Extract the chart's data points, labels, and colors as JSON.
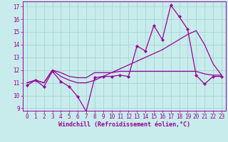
{
  "xlabel": "Windchill (Refroidissement éolien,°C)",
  "background_color": "#c8ecec",
  "grid_color": "#aad4d4",
  "line_color": "#990099",
  "xlim": [
    -0.5,
    23.5
  ],
  "ylim": [
    8.8,
    17.4
  ],
  "xticks": [
    0,
    1,
    2,
    3,
    4,
    5,
    6,
    7,
    8,
    9,
    10,
    11,
    12,
    13,
    14,
    15,
    16,
    17,
    18,
    19,
    20,
    21,
    22,
    23
  ],
  "yticks": [
    9,
    10,
    11,
    12,
    13,
    14,
    15,
    16,
    17
  ],
  "series1_x": [
    0,
    1,
    2,
    3,
    4,
    5,
    6,
    7,
    8,
    9,
    10,
    11,
    12,
    13,
    14,
    15,
    16,
    17,
    18,
    19,
    20,
    21,
    22,
    23
  ],
  "series1_y": [
    10.8,
    11.2,
    10.7,
    11.9,
    11.1,
    10.7,
    9.9,
    8.75,
    11.4,
    11.5,
    11.5,
    11.6,
    11.5,
    13.9,
    13.5,
    15.5,
    14.4,
    17.1,
    16.2,
    15.2,
    11.6,
    10.9,
    11.5,
    11.5
  ],
  "series2_x": [
    0,
    1,
    2,
    3,
    4,
    5,
    6,
    7,
    8,
    9,
    10,
    11,
    12,
    13,
    14,
    15,
    16,
    17,
    18,
    19,
    20,
    21,
    22,
    23
  ],
  "series2_y": [
    11.0,
    11.2,
    11.0,
    12.0,
    11.8,
    11.5,
    11.4,
    11.4,
    11.8,
    11.8,
    11.8,
    11.9,
    11.9,
    11.9,
    11.9,
    11.9,
    11.9,
    11.9,
    11.9,
    11.9,
    11.9,
    11.7,
    11.6,
    11.6
  ],
  "series3_x": [
    0,
    1,
    2,
    3,
    4,
    5,
    6,
    7,
    8,
    9,
    10,
    11,
    12,
    13,
    14,
    15,
    16,
    17,
    18,
    19,
    20,
    21,
    22,
    23
  ],
  "series3_y": [
    11.0,
    11.2,
    11.0,
    12.0,
    11.5,
    11.2,
    11.0,
    11.0,
    11.2,
    11.5,
    11.8,
    12.1,
    12.4,
    12.7,
    13.0,
    13.3,
    13.6,
    14.0,
    14.4,
    14.8,
    15.1,
    14.0,
    12.5,
    11.6
  ],
  "tick_fontsize": 5.5,
  "xlabel_fontsize": 6.0
}
